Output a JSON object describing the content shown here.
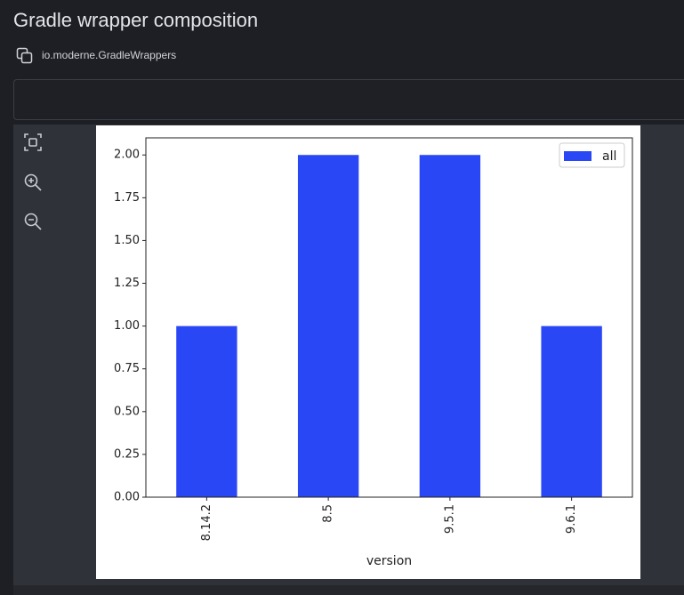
{
  "header": {
    "title": "Gradle wrapper composition",
    "subtitle": "io.moderne.GradleWrappers"
  },
  "chart_data": {
    "type": "bar",
    "categories": [
      "8.14.2",
      "8.5",
      "9.5.1",
      "9.6.1"
    ],
    "series": [
      {
        "name": "all",
        "color": "#2a47f6",
        "values": [
          1,
          2,
          2,
          1
        ]
      }
    ],
    "xlabel": "version",
    "ylim": [
      0,
      2.1
    ],
    "yticks": [
      {
        "value": 0,
        "label": "0.00"
      },
      {
        "value": 0.25,
        "label": "0.25"
      },
      {
        "value": 0.5,
        "label": "0.50"
      },
      {
        "value": 0.75,
        "label": "0.75"
      },
      {
        "value": 1,
        "label": "1.00"
      },
      {
        "value": 1.25,
        "label": "1.25"
      },
      {
        "value": 1.5,
        "label": "1.50"
      },
      {
        "value": 1.75,
        "label": "1.75"
      },
      {
        "value": 2,
        "label": "2.00"
      }
    ],
    "legend": "upper right"
  }
}
